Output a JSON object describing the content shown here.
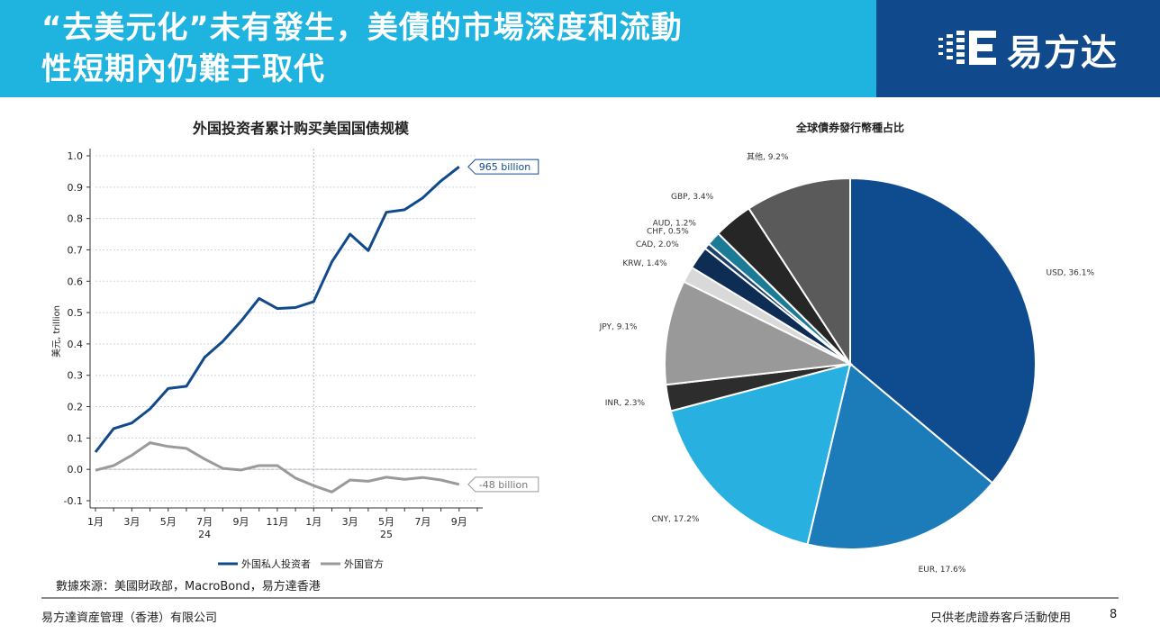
{
  "slide": {
    "title_line1": "“去美元化”未有發生，美債的市場深度和流動",
    "title_line2": "性短期內仍難于取代",
    "logo_text": "易方达",
    "source": "數據來源：美國財政部，MacroBond，易方達香港",
    "company": "易方達資産管理（香港）有限公司",
    "usage_note": "只供老虎證券客戶活動使用",
    "page_number": "8",
    "colors": {
      "header": "#1fb3e0",
      "logo_band": "#114a8c"
    }
  },
  "chart_data": [
    {
      "type": "line",
      "title": "外国投资者累计购买美国国债规模",
      "ylabel": "美元, trillion",
      "xlabel": "",
      "ylim": [
        -0.1,
        1.0
      ],
      "yticks": [
        "1.0",
        "0.9",
        "0.8",
        "0.7",
        "0.6",
        "0.5",
        "0.4",
        "0.3",
        "0.2",
        "0.1",
        "0.0",
        "-0.1"
      ],
      "ytick_values": [
        1.0,
        0.9,
        0.8,
        0.7,
        0.6,
        0.5,
        0.4,
        0.3,
        0.2,
        0.1,
        0.0,
        -0.1
      ],
      "x_tick_labels": [
        {
          "label": "1月",
          "index": 0
        },
        {
          "label": "3月",
          "index": 2
        },
        {
          "label": "5月",
          "index": 4
        },
        {
          "label": "7月",
          "index": 6
        },
        {
          "label": "9月",
          "index": 8
        },
        {
          "label": "11月",
          "index": 10
        },
        {
          "label": "1月",
          "index": 12
        },
        {
          "label": "3月",
          "index": 14
        },
        {
          "label": "5月",
          "index": 16
        },
        {
          "label": "7月",
          "index": 18
        },
        {
          "label": "9月",
          "index": 20
        }
      ],
      "year_labels": [
        {
          "label": "24",
          "index": 6
        },
        {
          "label": "25",
          "index": 16
        }
      ],
      "year_divider_index": 12,
      "x_count": 22,
      "series": [
        {
          "name": "外国私人投资者",
          "color": "#114a8c",
          "values": [
            0.055,
            0.13,
            0.148,
            0.193,
            0.258,
            0.265,
            0.357,
            0.408,
            0.472,
            0.545,
            0.513,
            0.516,
            0.535,
            0.662,
            0.75,
            0.698,
            0.82,
            0.828,
            0.866,
            0.92,
            0.965
          ]
        },
        {
          "name": "外国官方",
          "color": "#9a9a9a",
          "values": [
            -0.003,
            0.012,
            0.045,
            0.085,
            0.073,
            0.067,
            0.033,
            0.003,
            -0.002,
            0.012,
            0.012,
            -0.028,
            -0.052,
            -0.072,
            -0.034,
            -0.038,
            -0.025,
            -0.032,
            -0.026,
            -0.034,
            -0.048
          ]
        }
      ],
      "annotations": [
        {
          "text": "965 billion",
          "series": 0
        },
        {
          "text": "-48 billion",
          "series": 1
        }
      ]
    },
    {
      "type": "pie",
      "title": "全球債券發行幣種占比",
      "slices": [
        {
          "name": "USD",
          "value": 36.1,
          "label": "USD, 36.1%",
          "color": "#0f4c8f"
        },
        {
          "name": "EUR",
          "value": 17.6,
          "label": "EUR, 17.6%",
          "color": "#1b7cb9"
        },
        {
          "name": "CNY",
          "value": 17.2,
          "label": "CNY, 17.2%",
          "color": "#27b0e0"
        },
        {
          "name": "INR",
          "value": 2.3,
          "label": "INR, 2.3%",
          "color": "#2d2d2d"
        },
        {
          "name": "JPY",
          "value": 9.1,
          "label": "JPY, 9.1%",
          "color": "#999999"
        },
        {
          "name": "KRW",
          "value": 1.4,
          "label": "KRW, 1.4%",
          "color": "#d9d9d9"
        },
        {
          "name": "CAD",
          "value": 2.0,
          "label": "CAD, 2.0%",
          "color": "#0d2d55"
        },
        {
          "name": "CHF",
          "value": 0.5,
          "label": "CHF, 0.5%",
          "color": "#1c3f6e"
        },
        {
          "name": "AUD",
          "value": 1.2,
          "label": "AUD, 1.2%",
          "color": "#1b7a96"
        },
        {
          "name": "GBP",
          "value": 3.4,
          "label": "GBP, 3.4%",
          "color": "#262626"
        },
        {
          "name": "其他",
          "value": 9.2,
          "label": "其他, 9.2%",
          "color": "#5a5a5a"
        }
      ]
    }
  ]
}
